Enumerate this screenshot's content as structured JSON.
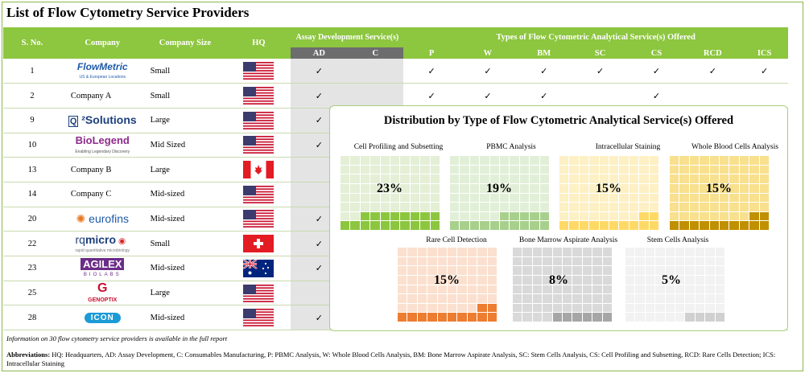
{
  "title": "List of Flow Cytometry Service Providers",
  "table": {
    "headers": {
      "sno": "S. No.",
      "company": "Company",
      "size": "Company Size",
      "hq": "HQ",
      "assay_group": "Assay Development Service(s)",
      "types_group": "Types of Flow Cytometric Analytical Service(s) Offered",
      "sub": [
        "AD",
        "C",
        "P",
        "W",
        "BM",
        "SC",
        "CS",
        "RCD",
        "ICS"
      ]
    },
    "rows": [
      {
        "sno": "1",
        "company": "FlowMetric",
        "tagline": "US & European Locations",
        "logo": true,
        "size": "Small",
        "hq": "us",
        "cells": [
          "✓",
          "",
          "✓",
          "✓",
          "✓",
          "✓",
          "✓",
          "✓",
          "✓"
        ]
      },
      {
        "sno": "2",
        "company": "Company A",
        "logo": false,
        "size": "Small",
        "hq": "us",
        "cells": [
          "✓",
          "",
          "✓",
          "✓",
          "✓",
          "",
          "✓",
          "",
          ""
        ]
      },
      {
        "sno": "9",
        "company": "Q²Solutions",
        "logo": true,
        "size": "Large",
        "hq": "us",
        "cells": [
          "✓",
          "",
          "",
          "",
          "",
          "",
          "",
          "",
          ""
        ]
      },
      {
        "sno": "10",
        "company": "BioLegend",
        "tagline": "Enabling Legendary Discovery",
        "logo": true,
        "size": "Mid Sized",
        "hq": "us",
        "cells": [
          "✓",
          "",
          "",
          "",
          "",
          "",
          "",
          "",
          ""
        ]
      },
      {
        "sno": "13",
        "company": "Company B",
        "logo": false,
        "size": "Large",
        "hq": "ca",
        "cells": [
          "",
          "",
          "",
          "",
          "",
          "",
          "",
          "",
          ""
        ]
      },
      {
        "sno": "14",
        "company": "Company C",
        "logo": false,
        "size": "Mid-sized",
        "hq": "us",
        "cells": [
          "",
          "",
          "",
          "",
          "",
          "",
          "",
          "",
          ""
        ]
      },
      {
        "sno": "20",
        "company": "eurofins",
        "logo": true,
        "size": "Mid-sized",
        "hq": "us",
        "cells": [
          "✓",
          "",
          "",
          "",
          "",
          "",
          "",
          "",
          ""
        ]
      },
      {
        "sno": "22",
        "company": "rqmicro",
        "tagline": "rapid quantitative microbiology",
        "logo": true,
        "size": "Small",
        "hq": "ch",
        "cells": [
          "✓",
          "",
          "",
          "",
          "",
          "",
          "",
          "",
          ""
        ]
      },
      {
        "sno": "23",
        "company": "AGILEX",
        "tagline": "BIOLABS",
        "logo": true,
        "size": "Mid-sized",
        "hq": "au",
        "cells": [
          "✓",
          "",
          "",
          "",
          "",
          "",
          "",
          "",
          ""
        ]
      },
      {
        "sno": "25",
        "company": "GENOPTIX",
        "logo": true,
        "size": "Large",
        "hq": "us",
        "cells": [
          "",
          "",
          "",
          "",
          "",
          "",
          "",
          "",
          ""
        ]
      },
      {
        "sno": "28",
        "company": "ICON",
        "logo": true,
        "size": "Mid-sized",
        "hq": "us",
        "cells": [
          "✓",
          "",
          "",
          "",
          "",
          "",
          "",
          "",
          ""
        ]
      }
    ]
  },
  "chart": {
    "title": "Distribution by Type of Flow Cytometric Analytical Service(s) Offered",
    "tiles": [
      {
        "label": "Cell Profiling and Subsetting",
        "pct": "23%",
        "value": 23,
        "light": "#e4efd6",
        "fill": "#8cc63f"
      },
      {
        "label": "PBMC Analysis",
        "pct": "19%",
        "value": 19,
        "light": "#e2efd8",
        "fill": "#a8d08d"
      },
      {
        "label": "Intracellular Staining",
        "pct": "15%",
        "value": 15,
        "light": "#fdf0c4",
        "fill": "#ffd966"
      },
      {
        "label": "Whole Blood Cells Analysis",
        "pct": "15%",
        "value": 15,
        "light": "#f8e08e",
        "fill": "#c09000"
      },
      {
        "label": "Rare Cell Detection",
        "pct": "15%",
        "value": 15,
        "light": "#fbe0cf",
        "fill": "#ed7d31"
      },
      {
        "label": "Bone Marrow Aspirate Analysis",
        "pct": "8%",
        "value": 8,
        "light": "#d9d9d9",
        "fill": "#a6a6a6"
      },
      {
        "label": "Stem Cells Analysis",
        "pct": "5%",
        "value": 5,
        "light": "#f2f2f2",
        "fill": "#d0d0d0"
      }
    ]
  },
  "note": "Information on 30 flow cytometry service providers is available in the full report",
  "abbreviations": {
    "label": "Abbreviations:",
    "text": "HQ: Headquarters, AD: Assay Development, C: Consumables Manufacturing, P: PBMC Analysis, W: Whole Blood Cells Analysis, BM: Bone Marrow Aspirate Analysis, SC: Stem Cells Analysis, CS: Cell Profiling and Subsetting, RCD: Rare Cells Detection; ICS: Intracellular Staining"
  },
  "colors": {
    "header_green": "#8dc63f",
    "header_grey": "#6d6d6d"
  }
}
